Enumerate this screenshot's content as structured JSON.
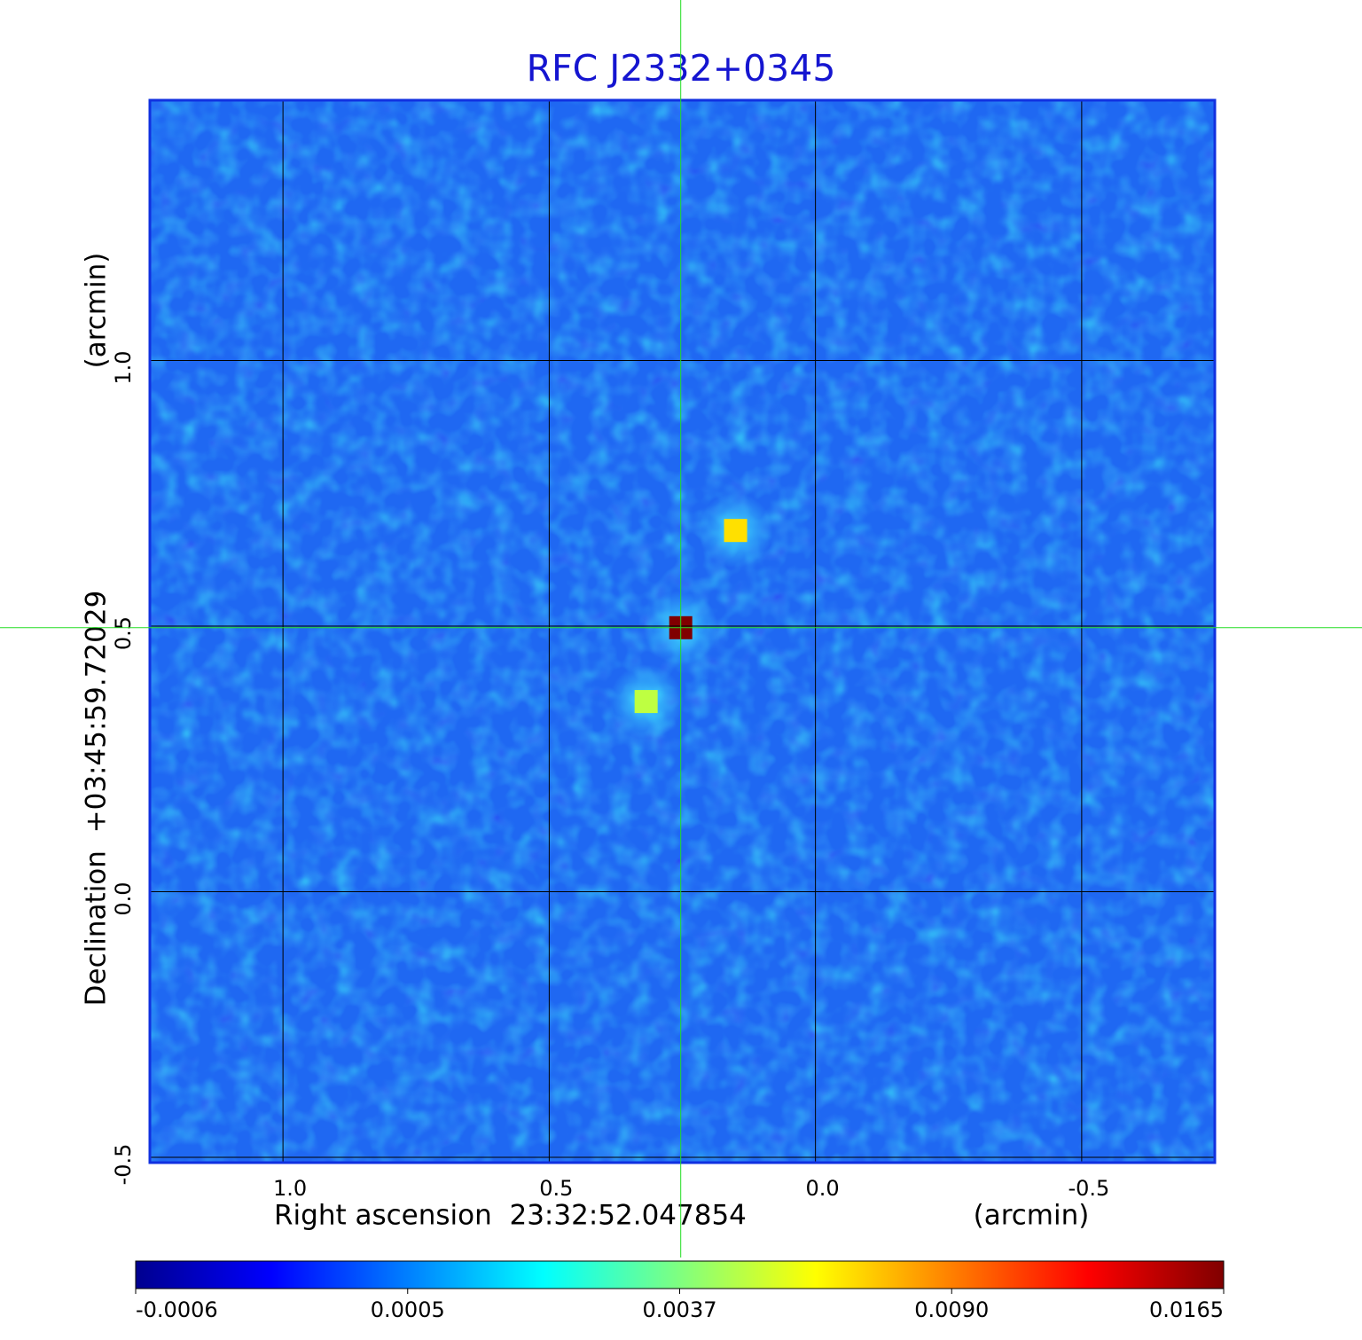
{
  "chart_data": {
    "type": "image",
    "title": "RFC J2332+0345",
    "xlabel": "Right ascension  23:32:52.047854",
    "xunit": "(arcmin)",
    "ylabel": "Declination  +03:45:59.72029",
    "yunit": "(arcmin)",
    "xlim": [
      1.25,
      -0.75
    ],
    "ylim": [
      -0.51,
      1.49
    ],
    "xticks": [
      {
        "value": 1,
        "label": "1.0"
      },
      0.5,
      {
        "value": 0,
        "label": "0.0"
      },
      -0.5
    ],
    "yticks": [
      -0.5,
      {
        "value": 0,
        "label": "0.0"
      },
      0.5,
      {
        "value": 1,
        "label": "1.0"
      }
    ],
    "grid": true,
    "crosshair": {
      "x": 0.253,
      "y": 0.497,
      "color": "#22dd22"
    },
    "sources": [
      {
        "x": 0.253,
        "y": 0.497,
        "value": 0.0165
      },
      {
        "x": 0.15,
        "y": 0.68,
        "value": 0.007
      },
      {
        "x": 0.318,
        "y": 0.358,
        "value": 0.005
      }
    ],
    "colorbar": {
      "ticks": [
        -0.0006,
        0.0005,
        0.0037,
        {
          "value": 0.009,
          "label": "0.0090"
        },
        0.0165
      ]
    }
  }
}
